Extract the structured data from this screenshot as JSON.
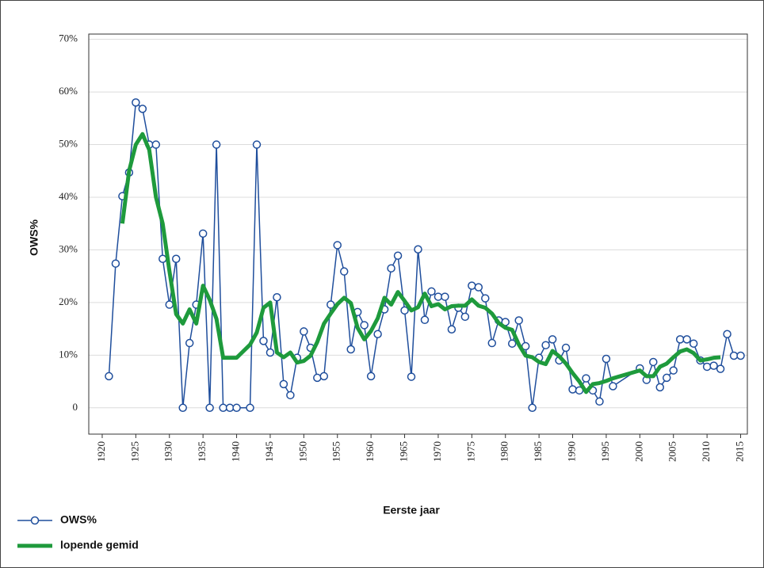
{
  "chart_data": {
    "type": "line",
    "x_label": "Eerste jaar",
    "y_label": "OWS%",
    "xlim": [
      1918,
      2016
    ],
    "ylim": [
      -5,
      71
    ],
    "xticks": [
      1920,
      1925,
      1930,
      1935,
      1940,
      1945,
      1950,
      1955,
      1960,
      1965,
      1970,
      1975,
      1980,
      1985,
      1990,
      1995,
      2000,
      2005,
      2010,
      2015
    ],
    "yticks": [
      0,
      {
        "value": 10,
        "label": "10%"
      },
      {
        "value": 20,
        "label": "20%"
      },
      {
        "value": 30,
        "label": "30%"
      },
      {
        "value": 40,
        "label": "40%"
      },
      {
        "value": 50,
        "label": "50%"
      },
      {
        "value": 60,
        "label": "60%"
      },
      {
        "value": 70,
        "label": "70%"
      }
    ],
    "grid": true,
    "legend": "bottom-left",
    "series": [
      {
        "name": "OWS%",
        "color": "#1f4e9c",
        "marker": "circle",
        "x": [
          1921,
          1922,
          1923,
          1924,
          1925,
          1926,
          1927,
          1928,
          1929,
          1930,
          1931,
          1932,
          1933,
          1934,
          1935,
          1936,
          1937,
          1938,
          1939,
          1940,
          1942,
          1943,
          1944,
          1945,
          1946,
          1947,
          1948,
          1949,
          1950,
          1951,
          1952,
          1953,
          1954,
          1955,
          1956,
          1957,
          1958,
          1959,
          1960,
          1961,
          1962,
          1963,
          1964,
          1965,
          1966,
          1967,
          1968,
          1969,
          1970,
          1971,
          1972,
          1973,
          1974,
          1975,
          1976,
          1977,
          1978,
          1979,
          1980,
          1981,
          1982,
          1983,
          1984,
          1985,
          1986,
          1987,
          1988,
          1989,
          1990,
          1991,
          1992,
          1993,
          1994,
          1995,
          1996,
          2000,
          2001,
          2002,
          2003,
          2004,
          2005,
          2006,
          2007,
          2008,
          2009,
          2010,
          2011,
          2012,
          2013,
          2014,
          2015
        ],
        "values": [
          6,
          27.4,
          40.2,
          44.7,
          58,
          56.8,
          50,
          50,
          28.3,
          19.6,
          28.3,
          0,
          12.3,
          19.6,
          33.1,
          0,
          50,
          0,
          0,
          0,
          0,
          50,
          12.7,
          10.5,
          21,
          4.5,
          2.4,
          9.5,
          14.5,
          11.4,
          5.7,
          6,
          19.6,
          30.9,
          25.9,
          11.1,
          18.2,
          15.7,
          6,
          14,
          18.7,
          26.5,
          28.9,
          18.5,
          5.9,
          30.1,
          16.7,
          22.1,
          21.1,
          21.1,
          14.9,
          19,
          17.3,
          23.2,
          22.9,
          20.8,
          12.3,
          16.6,
          16.3,
          12.2,
          16.6,
          11.7,
          0,
          9.5,
          11.9,
          13,
          9,
          11.4,
          3.5,
          3.3,
          5.6,
          3.3,
          1.2,
          9.3,
          4.1,
          7.5,
          5.3,
          8.7,
          3.9,
          5.7,
          7.1,
          13,
          13,
          12.2,
          9,
          7.8,
          8,
          7.4,
          14,
          9.9,
          9.9
        ]
      },
      {
        "name": "lopende gemid",
        "color": "#1e9a3c",
        "marker": "none",
        "x": [
          1923,
          1924,
          1925,
          1926,
          1927,
          1928,
          1929,
          1930,
          1931,
          1932,
          1933,
          1934,
          1935,
          1936,
          1937,
          1938,
          1939,
          1940,
          1942,
          1943,
          1944,
          1945,
          1946,
          1947,
          1948,
          1949,
          1950,
          1951,
          1952,
          1953,
          1954,
          1955,
          1956,
          1957,
          1958,
          1959,
          1960,
          1961,
          1962,
          1963,
          1964,
          1965,
          1966,
          1967,
          1968,
          1969,
          1970,
          1971,
          1972,
          1973,
          1974,
          1975,
          1976,
          1977,
          1978,
          1979,
          1980,
          1981,
          1982,
          1983,
          1984,
          1985,
          1986,
          1987,
          1988,
          1989,
          1990,
          1991,
          1992,
          1993,
          1994,
          1995,
          1996,
          2000,
          2001,
          2002,
          2003,
          2004,
          2005,
          2006,
          2007,
          2008,
          2009,
          2010,
          2011,
          2012
        ],
        "values": [
          35,
          45,
          50,
          52,
          49,
          40,
          35,
          26,
          17.8,
          16,
          18.7,
          16,
          23.2,
          20.5,
          16.9,
          9.5,
          9.5,
          9.5,
          12,
          14.3,
          19,
          20,
          10.5,
          9.6,
          10.5,
          8.6,
          8.9,
          9.9,
          12.5,
          16,
          17.9,
          19.7,
          20.9,
          19.9,
          15.2,
          13,
          14.6,
          17,
          20.9,
          19.6,
          22,
          20.3,
          18.5,
          19.1,
          21.7,
          19.3,
          19.7,
          18.7,
          19.3,
          19.4,
          19.4,
          20.6,
          19.4,
          19,
          17.9,
          16.1,
          15.2,
          14.8,
          12,
          9.9,
          9.6,
          8.7,
          8.3,
          10.8,
          9.8,
          8.4,
          6.6,
          5,
          3,
          4.5,
          4.7,
          5.1,
          5.6,
          7.1,
          6,
          6,
          7.8,
          8.4,
          9.6,
          10.7,
          11.1,
          10.4,
          9,
          9.2,
          9.5,
          9.6
        ]
      }
    ]
  }
}
